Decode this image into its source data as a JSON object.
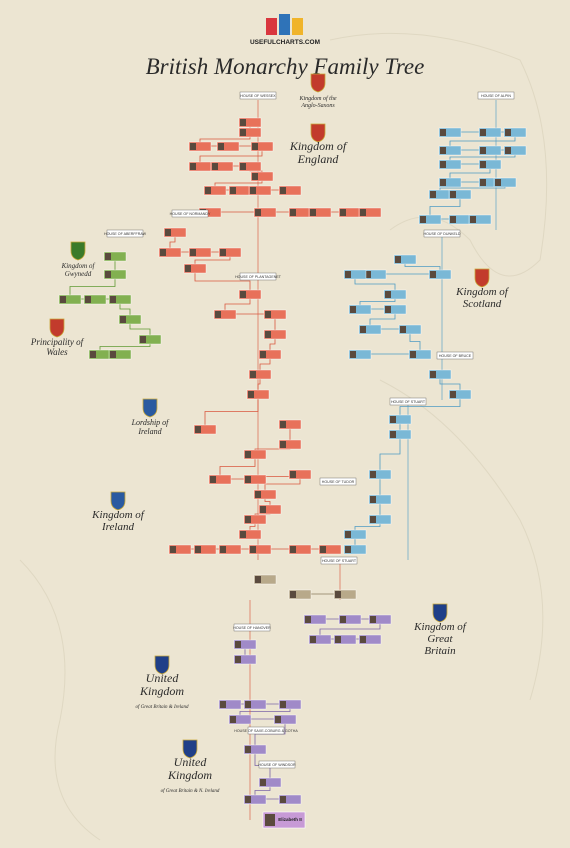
{
  "header": {
    "logo_text": "USEFULCHARTS.COM",
    "title": "British Monarchy Family Tree"
  },
  "regions": [
    {
      "lines": [
        "Kingdom of the",
        "Anglo-Saxons"
      ]
    },
    {
      "lines": [
        "Kingdom of",
        "England"
      ]
    },
    {
      "lines": [
        "Kingdom of",
        "Scotland"
      ]
    },
    {
      "lines": [
        "Kingdom of",
        "Gwynedd"
      ]
    },
    {
      "lines": [
        "Principality of",
        "Wales"
      ]
    },
    {
      "lines": [
        "Lordship of",
        "Ireland"
      ]
    },
    {
      "lines": [
        "Kingdom of",
        "Ireland"
      ]
    },
    {
      "lines": [
        "Kingdom of",
        "Great",
        "Britain"
      ]
    },
    {
      "lines": [
        "United",
        "Kingdom",
        "of Great Britain & Ireland"
      ]
    },
    {
      "lines": [
        "United",
        "Kingdom",
        "of Great Britain & N. Ireland"
      ]
    }
  ],
  "houses": [
    "House of Wessex",
    "House of Normandy",
    "House of Aberffraw",
    "House of Plantagenet",
    "House of Alpin",
    "House of Dunkeld",
    "House of Bruce",
    "House of Stuart",
    "House of Tudor",
    "House of Stuart",
    "House of Hanover",
    "House of Saxe-Coburg & Gotha",
    "House of Windsor"
  ],
  "final_monarch": "Elizabeth II"
}
